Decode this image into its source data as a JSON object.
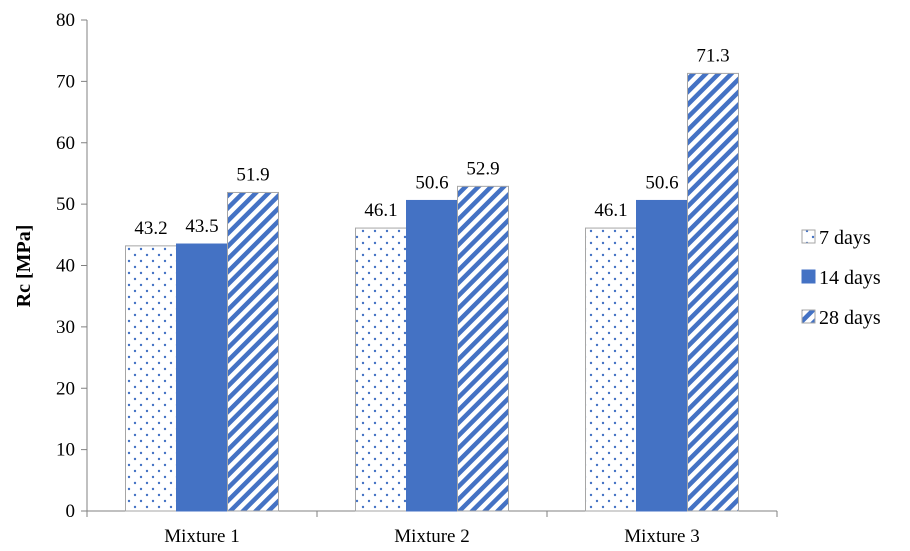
{
  "chart_data": {
    "type": "bar",
    "title": "",
    "xlabel": "",
    "ylabel": "Rc [MPa]",
    "ylim": [
      0,
      80
    ],
    "yticks": [
      0,
      10,
      20,
      30,
      40,
      50,
      60,
      70,
      80
    ],
    "grid": false,
    "legend_position": "right",
    "categories": [
      "Mixture 1",
      "Mixture 2",
      "Mixture 3"
    ],
    "series": [
      {
        "name": "7 days",
        "values": [
          43.2,
          46.1,
          46.1
        ],
        "labels": [
          "43.2",
          "46.1",
          "46.1"
        ],
        "pattern": "dots",
        "color": "#4472C4"
      },
      {
        "name": "14 days",
        "values": [
          43.5,
          50.6,
          50.6
        ],
        "labels": [
          "43.5",
          "50.6",
          "50.6"
        ],
        "pattern": "solid",
        "color": "#4472C4"
      },
      {
        "name": "28 days",
        "values": [
          51.9,
          52.9,
          71.3
        ],
        "labels": [
          "51.9",
          "52.9",
          "71.3"
        ],
        "pattern": "diagonal",
        "color": "#4472C4"
      }
    ]
  }
}
